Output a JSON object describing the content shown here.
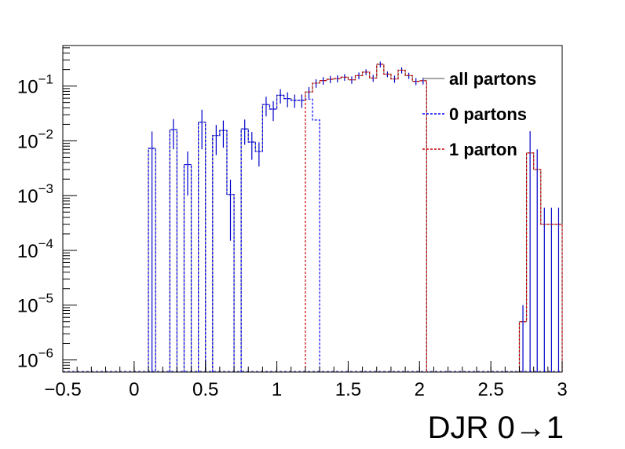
{
  "chart_data": {
    "type": "histogram",
    "xlabel": "DJR 0→1",
    "x_scale": "linear",
    "y_scale": "log",
    "xlim": [
      -0.5,
      3.0
    ],
    "ylim": [
      6e-07,
      0.55
    ],
    "grid": false,
    "legend_position": "top-right",
    "x_ticks": [
      -0.5,
      0,
      0.5,
      1,
      1.5,
      2,
      2.5,
      3
    ],
    "x_tick_labels": [
      "−0.5",
      "0",
      "0.5",
      "1",
      "1.5",
      "2",
      "2.5",
      "3"
    ],
    "y_ticks": [
      -6,
      -5,
      -4,
      -3,
      -2,
      -1
    ],
    "bin_width": 0.05,
    "series": [
      {
        "name": "all partons",
        "color": "#888888",
        "line_style": "solid",
        "points": [
          [
            0.125,
            0.0073,
            0.0075
          ],
          [
            0.275,
            0.016,
            0.009
          ],
          [
            0.375,
            0.0037,
            0.0027
          ],
          [
            0.475,
            0.022,
            0.015
          ],
          [
            0.575,
            0.0125,
            0.007
          ],
          [
            0.625,
            0.0155,
            0.008
          ],
          [
            0.675,
            0.00105,
            0.0009
          ],
          [
            0.775,
            0.0165,
            0.008
          ],
          [
            0.825,
            0.0095,
            0.005
          ],
          [
            0.875,
            0.0064,
            0.003
          ],
          [
            0.925,
            0.046,
            0.018
          ],
          [
            0.975,
            0.038,
            0.015
          ],
          [
            1.025,
            0.068,
            0.02
          ],
          [
            1.075,
            0.059,
            0.018
          ],
          [
            1.125,
            0.055,
            0.015
          ],
          [
            1.175,
            0.055,
            0.015
          ],
          [
            1.225,
            0.078,
            0.018
          ],
          [
            1.275,
            0.113,
            0.02
          ],
          [
            1.325,
            0.126,
            0.02
          ],
          [
            1.375,
            0.133,
            0.02
          ],
          [
            1.425,
            0.137,
            0.02
          ],
          [
            1.475,
            0.145,
            0.02
          ],
          [
            1.525,
            0.13,
            0.02
          ],
          [
            1.575,
            0.155,
            0.022
          ],
          [
            1.625,
            0.18,
            0.022
          ],
          [
            1.675,
            0.14,
            0.02
          ],
          [
            1.725,
            0.25,
            0.03
          ],
          [
            1.775,
            0.165,
            0.02
          ],
          [
            1.825,
            0.135,
            0.02
          ],
          [
            1.875,
            0.195,
            0.025
          ],
          [
            1.925,
            0.155,
            0.02
          ],
          [
            1.975,
            0.122,
            0.018
          ],
          [
            2.025,
            0.125,
            0.018
          ],
          [
            2.725,
            5e-06,
            5e-06
          ],
          [
            2.775,
            0.006,
            0.009
          ],
          [
            2.825,
            0.003,
            0.004
          ],
          [
            2.875,
            0.0003,
            0.0003
          ],
          [
            2.925,
            0.0003,
            0.0003
          ],
          [
            2.975,
            0.0003,
            0.0003
          ]
        ]
      },
      {
        "name": "0 partons",
        "color": "#0000ff",
        "line_style": "dashed",
        "points": [
          [
            0.125,
            0.0073
          ],
          [
            0.275,
            0.016
          ],
          [
            0.375,
            0.0037
          ],
          [
            0.475,
            0.022
          ],
          [
            0.575,
            0.0125
          ],
          [
            0.625,
            0.0155
          ],
          [
            0.675,
            0.00105
          ],
          [
            0.775,
            0.0165
          ],
          [
            0.825,
            0.0095
          ],
          [
            0.875,
            0.0064
          ],
          [
            0.925,
            0.046
          ],
          [
            0.975,
            0.038
          ],
          [
            1.025,
            0.068
          ],
          [
            1.075,
            0.059
          ],
          [
            1.125,
            0.055
          ],
          [
            1.175,
            0.055
          ],
          [
            1.225,
            0.058
          ],
          [
            1.275,
            0.024
          ]
        ]
      },
      {
        "name": "1 parton",
        "color": "#cc0000",
        "line_style": "dashed",
        "points": [
          [
            1.225,
            0.078
          ],
          [
            1.275,
            0.113
          ],
          [
            1.325,
            0.126
          ],
          [
            1.375,
            0.133
          ],
          [
            1.425,
            0.137
          ],
          [
            1.475,
            0.145
          ],
          [
            1.525,
            0.13
          ],
          [
            1.575,
            0.155
          ],
          [
            1.625,
            0.18
          ],
          [
            1.675,
            0.14
          ],
          [
            1.725,
            0.25
          ],
          [
            1.775,
            0.165
          ],
          [
            1.825,
            0.135
          ],
          [
            1.875,
            0.195
          ],
          [
            1.925,
            0.155
          ],
          [
            1.975,
            0.122
          ],
          [
            2.025,
            0.125
          ],
          [
            2.725,
            5e-06
          ],
          [
            2.775,
            0.006
          ],
          [
            2.825,
            0.003
          ],
          [
            2.875,
            0.0003
          ],
          [
            2.925,
            0.0003
          ],
          [
            2.975,
            0.0003
          ]
        ]
      }
    ]
  }
}
